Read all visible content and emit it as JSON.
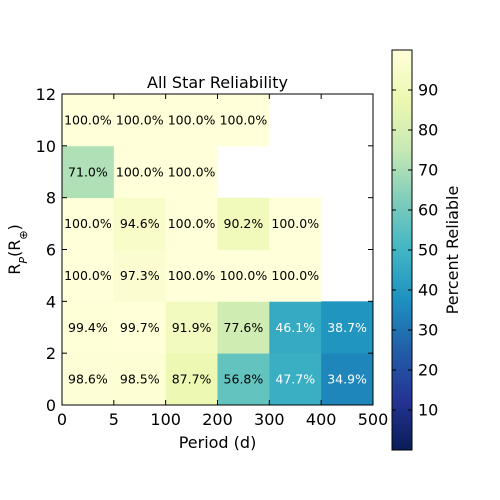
{
  "chart_data": {
    "type": "heatmap",
    "title": "All Star Reliability",
    "xlabel": "Period (d)",
    "ylabel": "R",
    "ylabel_sub": "P",
    "ylabel_paren_open": "(R",
    "ylabel_unit_sub": "⊕",
    "ylabel_paren_close": ")",
    "x_edges": [
      "0",
      "5",
      "100",
      "200",
      "300",
      "400",
      "500"
    ],
    "y_edges": [
      "0",
      "2",
      "4",
      "6",
      "8",
      "10",
      "12"
    ],
    "colorbar": {
      "label": "Percent Reliable",
      "min": 0,
      "max": 100,
      "ticks": [
        "10",
        "20",
        "30",
        "40",
        "50",
        "60",
        "70",
        "80",
        "90"
      ],
      "colormap": "YlGnBu"
    },
    "cells": [
      [
        98.6,
        98.5,
        87.7,
        56.8,
        47.7,
        34.9
      ],
      [
        99.4,
        99.7,
        91.9,
        77.6,
        46.1,
        38.7
      ],
      [
        100.0,
        97.3,
        100.0,
        100.0,
        100.0,
        null
      ],
      [
        100.0,
        94.6,
        100.0,
        90.2,
        100.0,
        null
      ],
      [
        71.0,
        100.0,
        100.0,
        null,
        null,
        null
      ],
      [
        100.0,
        100.0,
        100.0,
        100.0,
        null,
        null
      ]
    ],
    "cell_labels": [
      [
        "98.6%",
        "98.5%",
        "87.7%",
        "56.8%",
        "47.7%",
        "34.9%"
      ],
      [
        "99.4%",
        "99.7%",
        "91.9%",
        "77.6%",
        "46.1%",
        "38.7%"
      ],
      [
        "100.0%",
        "97.3%",
        "100.0%",
        "100.0%",
        "100.0%",
        ""
      ],
      [
        "100.0%",
        "94.6%",
        "100.0%",
        "90.2%",
        "100.0%",
        ""
      ],
      [
        "71.0%",
        "100.0%",
        "100.0%",
        "",
        "",
        ""
      ],
      [
        "100.0%",
        "100.0%",
        "100.0%",
        "100.0%",
        "",
        ""
      ]
    ]
  }
}
